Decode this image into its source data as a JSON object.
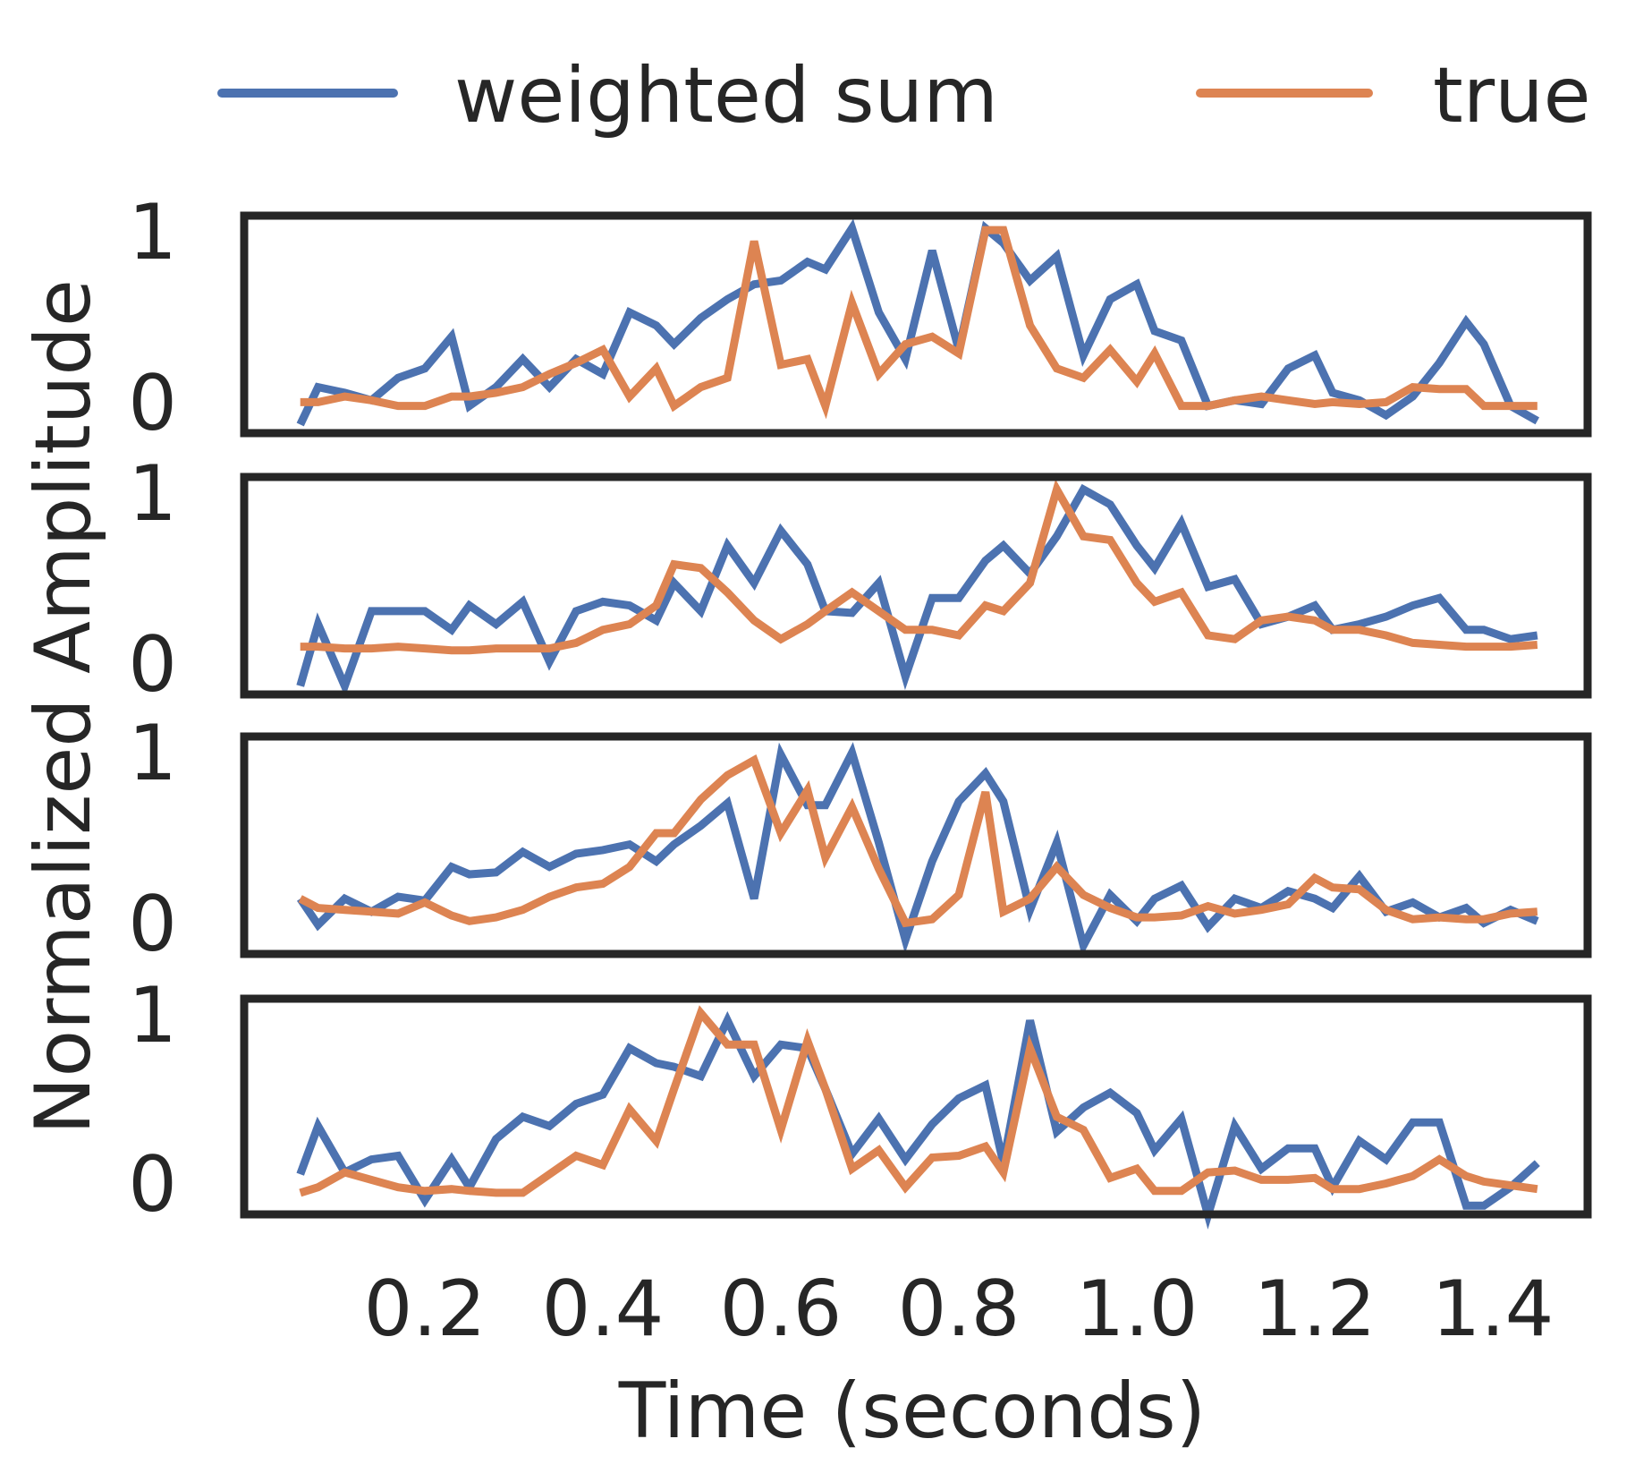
{
  "chart_data": {
    "type": "line",
    "xlabel": "Time (seconds)",
    "ylabel": "Normalized Amplitude",
    "xlim": [
      0.0,
      1.5
    ],
    "xticks": [
      "0.2",
      "0.4",
      "0.6",
      "0.8",
      "1.0",
      "1.2",
      "1.4"
    ],
    "yticks": [
      "0",
      "1"
    ],
    "ylim": [
      -0.1,
      1.05
    ],
    "legend": {
      "placement": "top",
      "entries": [
        {
          "name": "weighted sum",
          "color": "#4C72B0"
        },
        {
          "name": "true",
          "color": "#DD8452"
        }
      ]
    },
    "x": [
      0.06,
      0.08,
      0.11,
      0.14,
      0.17,
      0.2,
      0.23,
      0.25,
      0.28,
      0.31,
      0.34,
      0.37,
      0.4,
      0.43,
      0.46,
      0.48,
      0.51,
      0.54,
      0.57,
      0.6,
      0.63,
      0.65,
      0.68,
      0.71,
      0.74,
      0.77,
      0.8,
      0.83,
      0.85,
      0.88,
      0.91,
      0.94,
      0.97,
      1.0,
      1.02,
      1.05,
      1.08,
      1.11,
      1.14,
      1.17,
      1.2,
      1.22,
      1.25,
      1.28,
      1.31,
      1.34,
      1.37,
      1.39,
      1.42,
      1.45
    ],
    "panels": [
      {
        "series": [
          {
            "name": "weighted sum",
            "values": [
              -0.05,
              0.15,
              0.12,
              0.08,
              0.2,
              0.25,
              0.42,
              0.05,
              0.15,
              0.3,
              0.15,
              0.3,
              0.22,
              0.55,
              0.48,
              0.38,
              0.52,
              0.62,
              0.7,
              0.72,
              0.82,
              0.78,
              1.0,
              0.55,
              0.3,
              0.88,
              0.35,
              1.0,
              0.92,
              0.72,
              0.85,
              0.32,
              0.62,
              0.7,
              0.45,
              0.4,
              0.05,
              0.08,
              0.06,
              0.25,
              0.32,
              0.12,
              0.08,
              0.0,
              0.1,
              0.28,
              0.5,
              0.38,
              0.05,
              -0.03
            ]
          },
          {
            "name": "true",
            "values": [
              0.07,
              0.07,
              0.1,
              0.08,
              0.05,
              0.05,
              0.1,
              0.1,
              0.12,
              0.15,
              0.22,
              0.28,
              0.35,
              0.1,
              0.25,
              0.05,
              0.15,
              0.2,
              0.93,
              0.27,
              0.3,
              0.05,
              0.6,
              0.22,
              0.38,
              0.42,
              0.33,
              0.99,
              0.99,
              0.48,
              0.25,
              0.2,
              0.35,
              0.18,
              0.33,
              0.05,
              0.05,
              0.08,
              0.1,
              0.08,
              0.06,
              0.07,
              0.06,
              0.07,
              0.15,
              0.14,
              0.14,
              0.05,
              0.05,
              0.05
            ]
          }
        ]
      },
      {
        "series": [
          {
            "name": "weighted sum",
            "values": [
              -0.05,
              0.28,
              -0.05,
              0.35,
              0.35,
              0.35,
              0.25,
              0.38,
              0.28,
              0.4,
              0.08,
              0.35,
              0.4,
              0.38,
              0.3,
              0.5,
              0.35,
              0.7,
              0.5,
              0.78,
              0.6,
              0.35,
              0.34,
              0.5,
              0.0,
              0.42,
              0.42,
              0.62,
              0.7,
              0.55,
              0.75,
              1.0,
              0.92,
              0.7,
              0.58,
              0.82,
              0.48,
              0.52,
              0.28,
              0.32,
              0.38,
              0.25,
              0.28,
              0.32,
              0.38,
              0.42,
              0.25,
              0.25,
              0.2,
              0.22
            ]
          },
          {
            "name": "true",
            "values": [
              0.16,
              0.16,
              0.15,
              0.15,
              0.16,
              0.15,
              0.14,
              0.14,
              0.15,
              0.15,
              0.15,
              0.18,
              0.25,
              0.28,
              0.38,
              0.6,
              0.58,
              0.45,
              0.3,
              0.2,
              0.28,
              0.35,
              0.45,
              0.35,
              0.25,
              0.25,
              0.22,
              0.38,
              0.35,
              0.5,
              1.0,
              0.75,
              0.73,
              0.5,
              0.4,
              0.45,
              0.22,
              0.2,
              0.3,
              0.32,
              0.3,
              0.25,
              0.25,
              0.22,
              0.18,
              0.17,
              0.16,
              0.16,
              0.16,
              0.17
            ]
          }
        ]
      },
      {
        "series": [
          {
            "name": "weighted sum",
            "values": [
              0.2,
              0.06,
              0.2,
              0.13,
              0.21,
              0.19,
              0.37,
              0.33,
              0.34,
              0.45,
              0.37,
              0.44,
              0.46,
              0.49,
              0.4,
              0.49,
              0.59,
              0.71,
              0.2,
              0.97,
              0.7,
              0.7,
              0.98,
              0.5,
              -0.02,
              0.4,
              0.72,
              0.87,
              0.72,
              0.14,
              0.5,
              -0.05,
              0.22,
              0.08,
              0.2,
              0.27,
              0.05,
              0.2,
              0.15,
              0.24,
              0.2,
              0.15,
              0.32,
              0.13,
              0.18,
              0.1,
              0.15,
              0.07,
              0.14,
              0.08
            ]
          },
          {
            "name": "true",
            "values": [
              0.2,
              0.15,
              0.14,
              0.13,
              0.12,
              0.18,
              0.11,
              0.08,
              0.1,
              0.14,
              0.21,
              0.26,
              0.28,
              0.37,
              0.55,
              0.55,
              0.73,
              0.86,
              0.94,
              0.55,
              0.78,
              0.42,
              0.69,
              0.36,
              0.07,
              0.09,
              0.22,
              0.77,
              0.13,
              0.2,
              0.37,
              0.22,
              0.15,
              0.1,
              0.1,
              0.11,
              0.16,
              0.12,
              0.14,
              0.17,
              0.31,
              0.26,
              0.25,
              0.14,
              0.09,
              0.1,
              0.09,
              0.09,
              0.12,
              0.13
            ]
          }
        ]
      },
      {
        "series": [
          {
            "name": "weighted sum",
            "values": [
              0.12,
              0.38,
              0.13,
              0.2,
              0.22,
              -0.02,
              0.2,
              0.05,
              0.31,
              0.43,
              0.38,
              0.5,
              0.55,
              0.8,
              0.72,
              0.7,
              0.65,
              0.95,
              0.65,
              0.82,
              0.8,
              0.58,
              0.23,
              0.42,
              0.2,
              0.39,
              0.53,
              0.6,
              0.18,
              0.95,
              0.35,
              0.48,
              0.56,
              0.45,
              0.25,
              0.42,
              -0.1,
              0.38,
              0.15,
              0.26,
              0.26,
              0.05,
              0.3,
              0.2,
              0.4,
              0.4,
              -0.05,
              -0.05,
              0.05,
              0.18
            ]
          },
          {
            "name": "true",
            "values": [
              0.02,
              0.05,
              0.13,
              0.09,
              0.05,
              0.03,
              0.04,
              0.03,
              0.02,
              0.02,
              0.12,
              0.22,
              0.17,
              0.47,
              0.3,
              0.58,
              0.99,
              0.82,
              0.82,
              0.36,
              0.84,
              0.58,
              0.15,
              0.25,
              0.05,
              0.21,
              0.22,
              0.27,
              0.13,
              0.8,
              0.43,
              0.36,
              0.1,
              0.15,
              0.03,
              0.03,
              0.13,
              0.14,
              0.09,
              0.09,
              0.1,
              0.04,
              0.04,
              0.07,
              0.11,
              0.2,
              0.11,
              0.08,
              0.06,
              0.04
            ]
          }
        ]
      }
    ]
  }
}
